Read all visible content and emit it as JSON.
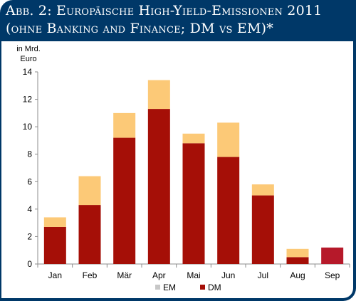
{
  "title": {
    "line1": "Abb. 2: Europäische High-Yield-Emissionen 2011",
    "line2": "(ohne Banking and Finance; DM vs EM)*"
  },
  "colors": {
    "frame": "#003868",
    "dm": "#a50f07",
    "em": "#fcc977",
    "sep": "#b6192a",
    "legend_em_swatch": "#c7c7c7"
  },
  "chart_data": {
    "type": "bar",
    "stacked": true,
    "ylabel": "in Mrd.\nEuro",
    "ylabel_lines": [
      "in Mrd.",
      "Euro"
    ],
    "ylim": [
      0,
      14
    ],
    "yticks": [
      0,
      2,
      4,
      6,
      8,
      10,
      12,
      14
    ],
    "grid": false,
    "legend_position": "bottom",
    "categories": [
      "Jan",
      "Feb",
      "Mär",
      "Apr",
      "Mai",
      "Jun",
      "Jul",
      "Aug",
      "Sep"
    ],
    "series": [
      {
        "name": "DM",
        "values": [
          2.7,
          4.3,
          9.2,
          11.3,
          8.8,
          7.8,
          5.0,
          0.5,
          1.2
        ]
      },
      {
        "name": "EM",
        "values": [
          0.7,
          2.1,
          1.8,
          2.1,
          0.7,
          2.5,
          0.8,
          0.6,
          0.0
        ]
      }
    ],
    "legend": [
      "EM",
      "DM"
    ]
  }
}
